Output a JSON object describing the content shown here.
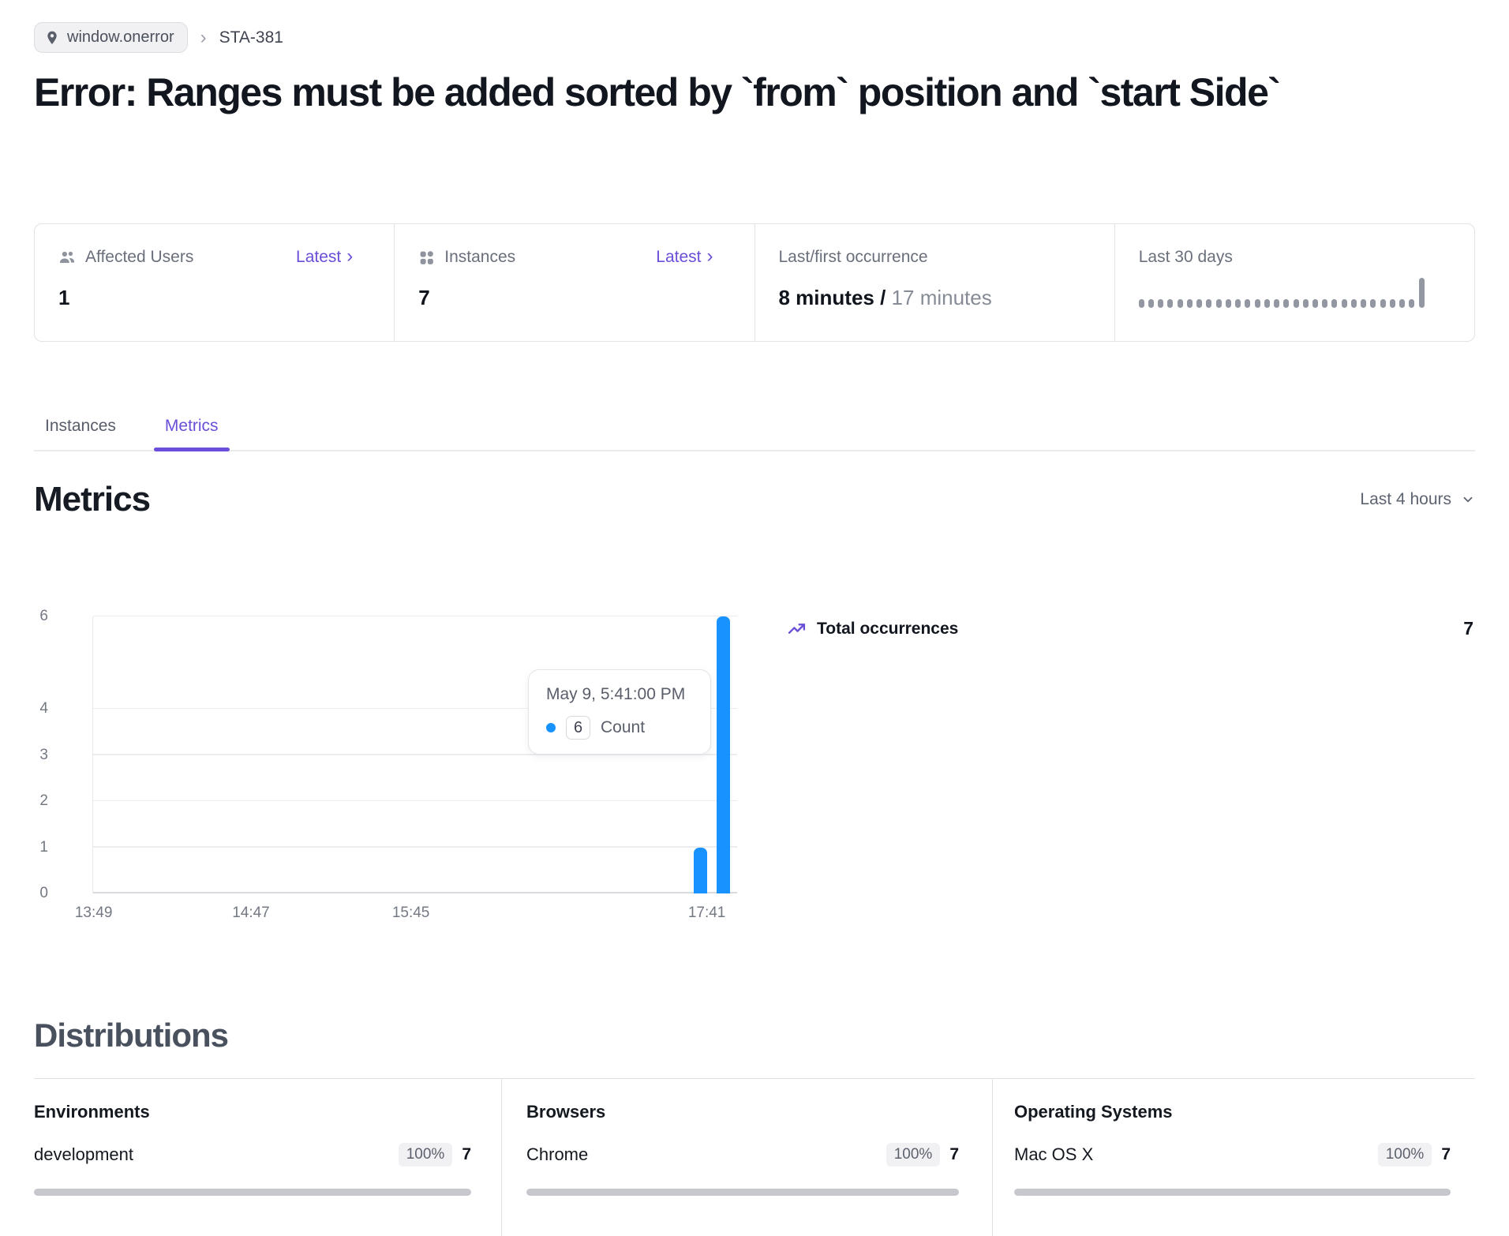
{
  "colors": {
    "accent_purple": "#6b4ed9",
    "bar_blue": "#1792ff",
    "text_dark": "#10141d",
    "text_gray": "#6a6f7c",
    "border": "#e2e3e7",
    "spark_gray": "#9297a2",
    "progress_gray": "#c6c8ce"
  },
  "breadcrumb": {
    "location": "window.onerror",
    "separator": "›",
    "issue": "STA-381"
  },
  "title": "Error: Ranges must be added sorted by `from` position and `start Side`",
  "stat_cards": {
    "affected_users": {
      "label": "Affected Users",
      "link": "Latest",
      "chevron": "›",
      "value": "1"
    },
    "instances": {
      "label": "Instances",
      "link": "Latest",
      "chevron": "›",
      "value": "7"
    },
    "occurrence": {
      "label": "Last/first occurrence",
      "last": "8 minutes / ",
      "first": "17 minutes"
    },
    "last_30_days": {
      "label": "Last 30 days",
      "spark_values": [
        0,
        0,
        0,
        0,
        0,
        0,
        0,
        0,
        0,
        0,
        0,
        0,
        0,
        0,
        0,
        0,
        0,
        0,
        0,
        0,
        0,
        0,
        0,
        0,
        0,
        0,
        0,
        0,
        0,
        7
      ],
      "spark_max": 7
    }
  },
  "tabs": {
    "instances": "Instances",
    "metrics": "Metrics"
  },
  "metrics": {
    "heading": "Metrics",
    "range": "Last 4 hours"
  },
  "chart_data": {
    "type": "bar",
    "title": "Total occurrences",
    "series_name": "Count",
    "ylim": [
      0,
      6
    ],
    "y_ticks": [
      0,
      1,
      2,
      3,
      4,
      6
    ],
    "x_tick_labels": [
      "13:49",
      "14:47",
      "15:45",
      "17:41"
    ],
    "x_tick_pos": [
      0.002,
      0.246,
      0.494,
      0.953
    ],
    "bars": [
      {
        "x_pos": 0.944,
        "value": 1
      },
      {
        "x_pos": 0.979,
        "value": 6
      }
    ],
    "bar_color": "#1792ff",
    "grid": true,
    "tooltip": {
      "timestamp": "May 9, 5:41:00 PM",
      "value": "6",
      "series": "Count"
    },
    "legend": {
      "label": "Total occurrences",
      "total": "7",
      "position": "right"
    }
  },
  "distributions": {
    "heading": "Distributions",
    "columns": [
      {
        "title": "Environments",
        "rows": [
          {
            "label": "development",
            "percent": "100%",
            "count": "7",
            "fraction": 1
          }
        ]
      },
      {
        "title": "Browsers",
        "rows": [
          {
            "label": "Chrome",
            "percent": "100%",
            "count": "7",
            "fraction": 1
          }
        ]
      },
      {
        "title": "Operating Systems",
        "rows": [
          {
            "label": "Mac OS X",
            "percent": "100%",
            "count": "7",
            "fraction": 1
          }
        ]
      }
    ]
  }
}
